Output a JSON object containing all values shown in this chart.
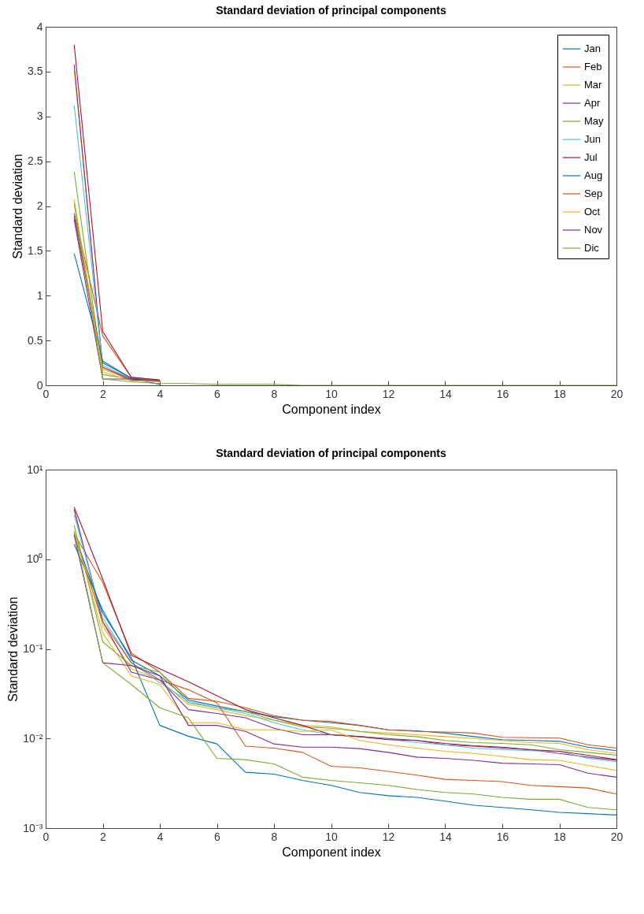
{
  "chart_data": [
    {
      "type": "line",
      "title": "Standard deviation of principal components",
      "xlabel": "Component index",
      "ylabel": "Standard deviation",
      "x": [
        1,
        2,
        3,
        4,
        5,
        6,
        7,
        8,
        9,
        10,
        11,
        12,
        13,
        14,
        15,
        16,
        17,
        18,
        19,
        20
      ],
      "xlim": [
        0,
        20
      ],
      "xticks": [
        0,
        2,
        4,
        6,
        8,
        10,
        12,
        14,
        16,
        18,
        20
      ],
      "ylim": [
        0,
        4
      ],
      "yticks": [
        0,
        0.5,
        1,
        1.5,
        2,
        2.5,
        3,
        3.5,
        4
      ],
      "legend": "top right",
      "series": [
        {
          "name": "Jan",
          "color": "#0072bd",
          "values": [
            1.47,
            0.27,
            0.08,
            0.05,
            null,
            null,
            null,
            null,
            null,
            null,
            null,
            null,
            null,
            null,
            null,
            null,
            null,
            null,
            null,
            null
          ]
        },
        {
          "name": "Feb",
          "color": "#d95319",
          "values": [
            1.92,
            0.55,
            0.09,
            0.06,
            null,
            null,
            null,
            null,
            null,
            null,
            null,
            null,
            null,
            null,
            null,
            null,
            null,
            null,
            null,
            null
          ]
        },
        {
          "name": "Mar",
          "color": "#edb120",
          "values": [
            3.52,
            0.18,
            0.06,
            0.05,
            null,
            null,
            null,
            null,
            null,
            null,
            null,
            null,
            null,
            null,
            null,
            null,
            null,
            null,
            null,
            null
          ]
        },
        {
          "name": "Apr",
          "color": "#7e2f8e",
          "values": [
            3.58,
            0.2,
            0.06,
            0.05,
            null,
            null,
            null,
            null,
            null,
            null,
            null,
            null,
            null,
            null,
            null,
            null,
            null,
            null,
            null,
            null
          ]
        },
        {
          "name": "May",
          "color": "#77ac30",
          "values": [
            2.38,
            0.12,
            0.07,
            0.06,
            null,
            null,
            null,
            null,
            null,
            null,
            null,
            null,
            null,
            null,
            null,
            null,
            null,
            null,
            null,
            null
          ]
        },
        {
          "name": "Jun",
          "color": "#4dbeee",
          "values": [
            3.12,
            0.22,
            0.07,
            0.04,
            null,
            null,
            null,
            null,
            null,
            null,
            null,
            null,
            null,
            null,
            null,
            null,
            null,
            null,
            null,
            null
          ]
        },
        {
          "name": "Jul",
          "color": "#a2142f",
          "values": [
            3.8,
            0.6,
            0.09,
            0.06,
            null,
            null,
            null,
            null,
            null,
            null,
            null,
            null,
            null,
            null,
            null,
            null,
            null,
            null,
            null,
            null
          ]
        },
        {
          "name": "Aug",
          "color": "#0072bd",
          "values": [
            1.9,
            0.25,
            0.08,
            0.01,
            null,
            null,
            null,
            null,
            null,
            null,
            null,
            null,
            null,
            null,
            null,
            null,
            null,
            null,
            null,
            null
          ]
        },
        {
          "name": "Sep",
          "color": "#d95319",
          "values": [
            1.88,
            0.2,
            0.07,
            0.05,
            null,
            null,
            null,
            null,
            null,
            null,
            null,
            null,
            null,
            null,
            null,
            null,
            null,
            null,
            null,
            null
          ]
        },
        {
          "name": "Oct",
          "color": "#edb120",
          "values": [
            2.07,
            0.15,
            0.05,
            0.04,
            null,
            null,
            null,
            null,
            null,
            null,
            null,
            null,
            null,
            null,
            null,
            null,
            null,
            null,
            null,
            null
          ]
        },
        {
          "name": "Nov",
          "color": "#7e2f8e",
          "values": [
            1.85,
            0.07,
            0.07,
            0.05,
            null,
            null,
            null,
            null,
            null,
            null,
            null,
            null,
            null,
            null,
            null,
            null,
            null,
            null,
            null,
            null
          ]
        },
        {
          "name": "Dic",
          "color": "#77ac30",
          "values": [
            2.03,
            0.07,
            0.04,
            0.02,
            0.02,
            0.01,
            0.01,
            0.01,
            0,
            0,
            0,
            0,
            0,
            0,
            0,
            0,
            0,
            0,
            0,
            0
          ]
        }
      ]
    },
    {
      "type": "line",
      "title": "Standard deviation of principal components",
      "xlabel": "Component index",
      "ylabel": "Standard deviation",
      "x": [
        1,
        2,
        3,
        4,
        5,
        6,
        7,
        8,
        9,
        10,
        11,
        12,
        13,
        14,
        15,
        16,
        17,
        18,
        19,
        20
      ],
      "xlim": [
        0,
        20
      ],
      "xticks": [
        0,
        2,
        4,
        6,
        8,
        10,
        12,
        14,
        16,
        18,
        20
      ],
      "ylim": [
        0.001,
        10
      ],
      "yticks": [
        {
          "value": 0.001,
          "label": "10⁻³"
        },
        {
          "value": 0.01,
          "label": "10⁻²"
        },
        {
          "value": 0.1,
          "label": "10⁻¹"
        },
        {
          "value": 1,
          "label": "10⁰"
        },
        {
          "value": 10,
          "label": "10¹"
        }
      ],
      "log": true,
      "legend": "top right",
      "series": [
        {
          "name": "Jan",
          "color": "#0072bd",
          "values": [
            1.47,
            0.27,
            0.075,
            0.05,
            0.027,
            0.023,
            0.02,
            0.0175,
            0.016,
            0.015,
            0.014,
            0.0125,
            0.0122,
            0.0115,
            0.0105,
            0.0097,
            0.0095,
            0.0093,
            0.008,
            0.0073
          ]
        },
        {
          "name": "Feb",
          "color": "#d95319",
          "values": [
            1.92,
            0.55,
            0.09,
            0.055,
            0.028,
            0.026,
            0.022,
            0.018,
            0.016,
            0.0155,
            0.014,
            0.0125,
            0.012,
            0.0118,
            0.0115,
            0.0103,
            0.0102,
            0.0101,
            0.0085,
            0.0078
          ]
        },
        {
          "name": "Mar",
          "color": "#edb120",
          "values": [
            3.52,
            0.18,
            0.06,
            0.045,
            0.024,
            0.021,
            0.018,
            0.016,
            0.014,
            0.0135,
            0.012,
            0.0115,
            0.011,
            0.0105,
            0.01,
            0.0095,
            0.009,
            0.0088,
            0.0075,
            0.0068
          ]
        },
        {
          "name": "Apr",
          "color": "#7e2f8e",
          "values": [
            3.58,
            0.2,
            0.055,
            0.045,
            0.021,
            0.019,
            0.017,
            0.013,
            0.011,
            0.011,
            0.0105,
            0.01,
            0.0095,
            0.0085,
            0.0082,
            0.0078,
            0.0075,
            0.0068,
            0.0062,
            0.0057
          ]
        },
        {
          "name": "May",
          "color": "#77ac30",
          "values": [
            2.38,
            0.12,
            0.065,
            0.055,
            0.025,
            0.022,
            0.02,
            0.016,
            0.0135,
            0.013,
            0.012,
            0.011,
            0.0105,
            0.0095,
            0.009,
            0.0088,
            0.0085,
            0.0075,
            0.007,
            0.0065
          ]
        },
        {
          "name": "Jun",
          "color": "#4dbeee",
          "values": [
            3.12,
            0.22,
            0.07,
            0.042,
            0.026,
            0.022,
            0.019,
            0.015,
            0.0125,
            0.011,
            0.0105,
            0.0098,
            0.009,
            0.0085,
            0.0078,
            0.0075,
            0.0073,
            0.0072,
            0.006,
            0.0055
          ]
        },
        {
          "name": "Jul",
          "color": "#a2142f",
          "values": [
            3.8,
            0.6,
            0.085,
            0.06,
            0.043,
            0.03,
            0.021,
            0.017,
            0.014,
            0.011,
            0.0105,
            0.0097,
            0.0095,
            0.0088,
            0.0083,
            0.008,
            0.0075,
            0.0072,
            0.0065,
            0.0058
          ]
        },
        {
          "name": "Aug",
          "color": "#0072bd",
          "values": [
            1.9,
            0.25,
            0.08,
            0.014,
            0.0106,
            0.0087,
            0.0042,
            0.004,
            0.0034,
            0.003,
            0.0025,
            0.0023,
            0.0022,
            0.002,
            0.0018,
            0.0017,
            0.0016,
            0.0015,
            0.00145,
            0.0014
          ]
        },
        {
          "name": "Sep",
          "color": "#d95319",
          "values": [
            1.88,
            0.2,
            0.07,
            0.045,
            0.035,
            0.025,
            0.0082,
            0.0078,
            0.007,
            0.0049,
            0.0047,
            0.0043,
            0.0039,
            0.0035,
            0.0034,
            0.0033,
            0.003,
            0.0029,
            0.0028,
            0.0024
          ]
        },
        {
          "name": "Oct",
          "color": "#edb120",
          "values": [
            2.07,
            0.15,
            0.05,
            0.04,
            0.015,
            0.015,
            0.0125,
            0.0125,
            0.012,
            0.0125,
            0.0095,
            0.0085,
            0.0078,
            0.0072,
            0.0068,
            0.0063,
            0.0058,
            0.0057,
            0.005,
            0.0044
          ]
        },
        {
          "name": "Nov",
          "color": "#7e2f8e",
          "values": [
            1.85,
            0.07,
            0.065,
            0.05,
            0.014,
            0.014,
            0.012,
            0.0087,
            0.008,
            0.008,
            0.0077,
            0.007,
            0.0062,
            0.006,
            0.0057,
            0.0053,
            0.0052,
            0.0051,
            0.0041,
            0.0037
          ]
        },
        {
          "name": "Dic",
          "color": "#77ac30",
          "values": [
            2.03,
            0.07,
            0.04,
            0.022,
            0.017,
            0.006,
            0.0058,
            0.0052,
            0.0037,
            0.0034,
            0.0032,
            0.003,
            0.0027,
            0.0025,
            0.0024,
            0.0022,
            0.0021,
            0.0021,
            0.0017,
            0.0016
          ]
        }
      ]
    }
  ]
}
